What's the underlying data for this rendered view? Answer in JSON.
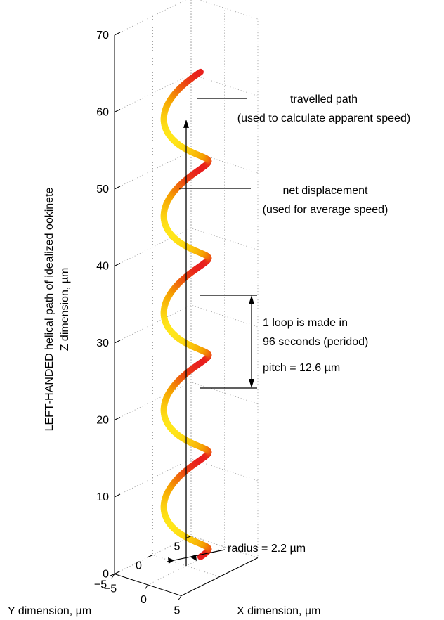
{
  "chart_data": {
    "type": "line",
    "projection": "3d",
    "grid": true,
    "zlabel_lines": [
      "LEFT-HANDED helical path of idealized ookinete",
      "Z dimension, µm"
    ],
    "xlabel": "X dimension, µm",
    "ylabel": "Y dimension, µm",
    "xlim": [
      -5,
      5
    ],
    "ylim": [
      -5,
      5
    ],
    "zlim": [
      0,
      70
    ],
    "z_ticks": [
      "0",
      "10",
      "20",
      "30",
      "40",
      "50",
      "60",
      "70"
    ],
    "x_ticks": [
      "−5",
      "0",
      "5"
    ],
    "y_ticks": [
      "−5",
      "0",
      "5"
    ],
    "series": [
      {
        "kind": "helix",
        "handedness": "left",
        "radius": 2.2,
        "pitch": 12.6,
        "z_start": 0,
        "z_end": 63,
        "colors": [
          "#ffe619",
          "#f5a000",
          "#e81e1e"
        ]
      },
      {
        "kind": "net-displacement-arrow",
        "z_start": 0,
        "z_end": 58
      }
    ],
    "annotations": {
      "travelled_path": [
        "travelled path",
        "(used to calculate apparent speed)"
      ],
      "net_displacement": [
        "net displacement",
        "(used for average speed)"
      ],
      "loop_lines": [
        "1 loop is made in",
        "96 seconds (peridod)"
      ],
      "pitch": "pitch = 12.6 µm",
      "radius": "radius = 2.2 µm"
    }
  }
}
